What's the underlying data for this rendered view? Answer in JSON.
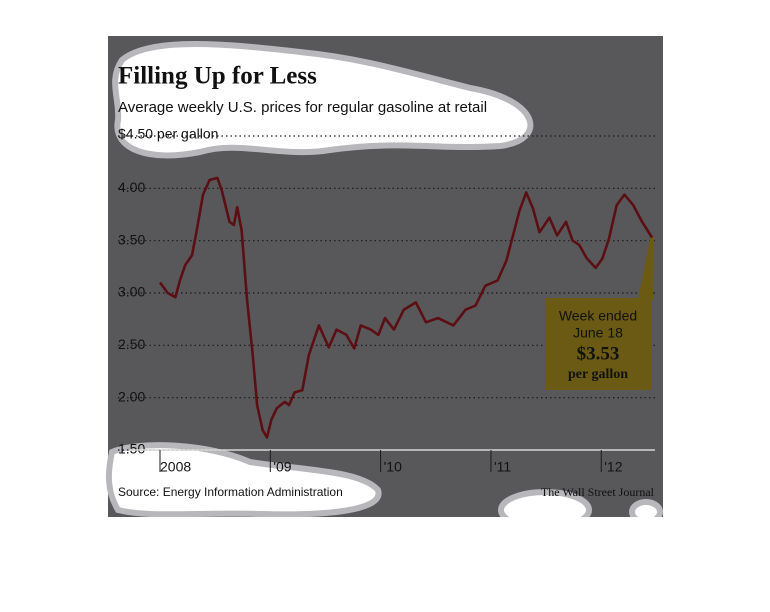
{
  "chart_data": {
    "type": "line",
    "title": "Filling Up for Less",
    "subtitle": "Average weekly U.S. prices for regular gasoline at retail",
    "x": [
      2008.0,
      2008.07,
      2008.14,
      2008.18,
      2008.23,
      2008.29,
      2008.33,
      2008.39,
      2008.45,
      2008.52,
      2008.56,
      2008.63,
      2008.67,
      2008.7,
      2008.74,
      2008.79,
      2008.84,
      2008.88,
      2008.93,
      2008.97,
      2009.01,
      2009.06,
      2009.13,
      2009.17,
      2009.22,
      2009.29,
      2009.35,
      2009.44,
      2009.53,
      2009.6,
      2009.69,
      2009.76,
      2009.82,
      2009.91,
      2009.98,
      2010.04,
      2010.12,
      2010.21,
      2010.32,
      2010.41,
      2010.52,
      2010.66,
      2010.77,
      2010.86,
      2010.95,
      2011.06,
      2011.14,
      2011.2,
      2011.26,
      2011.32,
      2011.38,
      2011.44,
      2011.53,
      2011.6,
      2011.68,
      2011.74,
      2011.8,
      2011.87,
      2011.95,
      2012.01,
      2012.07,
      2012.14,
      2012.21,
      2012.29,
      2012.37,
      2012.46
    ],
    "series": [
      {
        "name": "Regular gasoline",
        "color": "#5c0f12",
        "values": [
          3.1,
          3.0,
          2.96,
          3.12,
          3.27,
          3.36,
          3.58,
          3.94,
          4.08,
          4.1,
          3.98,
          3.68,
          3.65,
          3.82,
          3.6,
          2.93,
          2.41,
          1.93,
          1.69,
          1.62,
          1.79,
          1.9,
          1.96,
          1.93,
          2.05,
          2.07,
          2.41,
          2.69,
          2.48,
          2.65,
          2.6,
          2.47,
          2.69,
          2.65,
          2.6,
          2.76,
          2.65,
          2.84,
          2.91,
          2.72,
          2.76,
          2.69,
          2.84,
          2.88,
          3.07,
          3.12,
          3.31,
          3.55,
          3.79,
          3.96,
          3.81,
          3.58,
          3.72,
          3.55,
          3.68,
          3.5,
          3.46,
          3.33,
          3.24,
          3.33,
          3.52,
          3.84,
          3.94,
          3.84,
          3.68,
          3.53
        ]
      }
    ],
    "xlim": [
      2008,
      2012.46
    ],
    "xticks": [
      {
        "value": 2008,
        "label": "2008"
      },
      {
        "value": 2009,
        "label": "'09"
      },
      {
        "value": 2010,
        "label": "'10"
      },
      {
        "value": 2011,
        "label": "'11"
      },
      {
        "value": 2012,
        "label": "'12"
      }
    ],
    "ylim": [
      1.5,
      4.5
    ],
    "yticks": [
      {
        "value": 1.5,
        "label": "1.50"
      },
      {
        "value": 2,
        "label": "2.00"
      },
      {
        "value": 2.5,
        "label": "2.50"
      },
      {
        "value": 3,
        "label": "3.00"
      },
      {
        "value": 3.5,
        "label": "3.50"
      },
      {
        "value": 4,
        "label": "4.00"
      },
      {
        "value": 4.5,
        "label": "$4.50 per gallon"
      }
    ],
    "grid": true,
    "annotation": [
      "Week ended",
      "June 18",
      "$3.53",
      "per gallon"
    ],
    "source": "Source: Energy Information Administration",
    "credit": "The Wall Street Journal"
  }
}
